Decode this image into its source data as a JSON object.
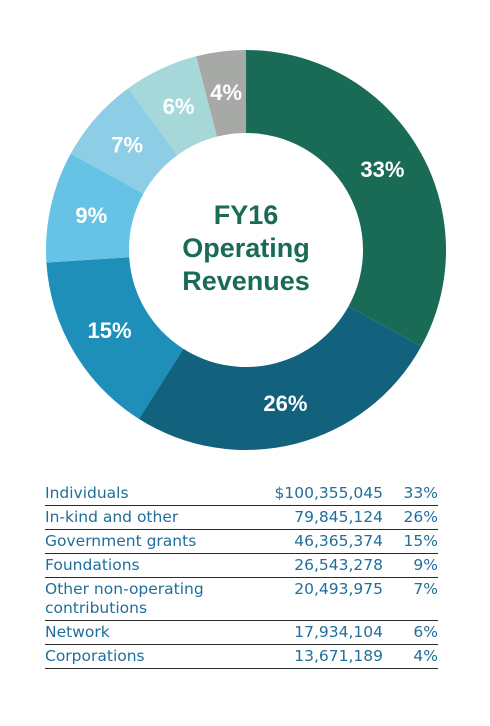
{
  "chart_data": {
    "type": "pie",
    "title": "FY16 Operating Revenues",
    "title_lines": [
      "FY16",
      "Operating",
      "Revenues"
    ],
    "slices": [
      {
        "name": "Individuals",
        "percent": 33,
        "label": "33%",
        "color": "#1a6b55"
      },
      {
        "name": "In-kind and other",
        "percent": 26,
        "label": "26%",
        "color": "#12627e"
      },
      {
        "name": "Government grants",
        "percent": 15,
        "label": "15%",
        "color": "#1d8fb8"
      },
      {
        "name": "Foundations",
        "percent": 9,
        "label": "9%",
        "color": "#67c3e6"
      },
      {
        "name": "Other non-operating contributions",
        "percent": 7,
        "label": "7%",
        "color": "#8dcde6"
      },
      {
        "name": "Network",
        "percent": 6,
        "label": "6%",
        "color": "#a6d8d9"
      },
      {
        "name": "Corporations",
        "percent": 4,
        "label": "4%",
        "color": "#a7a9a6"
      }
    ]
  },
  "table": {
    "rows": [
      {
        "name": "Individuals",
        "amount": "$100,355,045",
        "percent": "33%"
      },
      {
        "name": "In-kind and other",
        "amount": "79,845,124",
        "percent": "26%"
      },
      {
        "name": "Government grants",
        "amount": "46,365,374",
        "percent": "15%"
      },
      {
        "name": "Foundations",
        "amount": "26,543,278",
        "percent": "9%"
      },
      {
        "name": "Other non-operating contributions",
        "amount": "20,493,975",
        "percent": "7%"
      },
      {
        "name": "Network",
        "amount": "17,934,104",
        "percent": "6%"
      },
      {
        "name": "Corporations",
        "amount": "13,671,189",
        "percent": "4%"
      }
    ]
  }
}
